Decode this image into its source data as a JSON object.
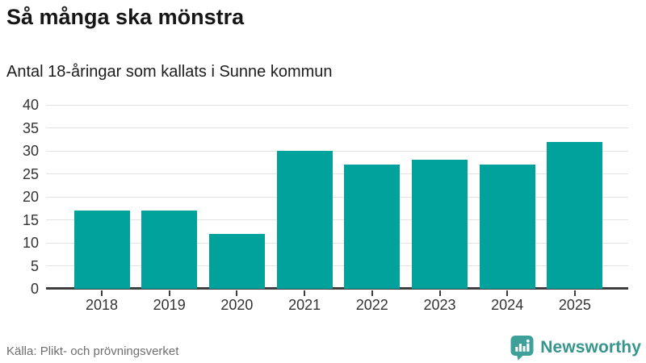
{
  "header": {
    "title": "Så många ska mönstra",
    "subtitle": "Antal 18-åringar som kallats i Sunne kommun"
  },
  "chart_data": {
    "type": "bar",
    "title": "Så många ska mönstra",
    "subtitle": "Antal 18-åringar som kallats i Sunne kommun",
    "categories": [
      "2018",
      "2019",
      "2020",
      "2021",
      "2022",
      "2023",
      "2024",
      "2025"
    ],
    "values": [
      17,
      17,
      12,
      30,
      27,
      28,
      27,
      32
    ],
    "xlabel": "",
    "ylabel": "",
    "ylim": [
      0,
      40
    ],
    "yticks": [
      0,
      5,
      10,
      15,
      20,
      25,
      30,
      35,
      40
    ],
    "grid": true,
    "legend": false,
    "bar_color": "#00a29b"
  },
  "footer": {
    "source": "Källa: Plikt- och prövningsverket",
    "logo_text": "Newsworthy"
  },
  "colors": {
    "accent_teal": "#00a29b",
    "gridline": "#e3e3e3",
    "axis": "#3e3e3e",
    "tick_label": "#333333",
    "source_text": "#6e6e6e",
    "logo_teal": "#36958d",
    "logo_icon_teal": "#3fa099"
  }
}
